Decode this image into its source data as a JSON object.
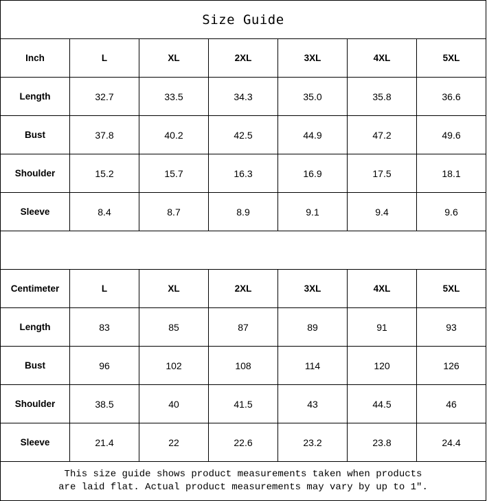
{
  "title": "Size Guide",
  "sizes": [
    "L",
    "XL",
    "2XL",
    "3XL",
    "4XL",
    "5XL"
  ],
  "tables": [
    {
      "unit": "Inch",
      "rows": [
        {
          "label": "Length",
          "values": [
            "32.7",
            "33.5",
            "34.3",
            "35.0",
            "35.8",
            "36.6"
          ]
        },
        {
          "label": "Bust",
          "values": [
            "37.8",
            "40.2",
            "42.5",
            "44.9",
            "47.2",
            "49.6"
          ]
        },
        {
          "label": "Shoulder",
          "values": [
            "15.2",
            "15.7",
            "16.3",
            "16.9",
            "17.5",
            "18.1"
          ]
        },
        {
          "label": "Sleeve",
          "values": [
            "8.4",
            "8.7",
            "8.9",
            "9.1",
            "9.4",
            "9.6"
          ]
        }
      ]
    },
    {
      "unit": "Centimeter",
      "rows": [
        {
          "label": "Length",
          "values": [
            "83",
            "85",
            "87",
            "89",
            "91",
            "93"
          ]
        },
        {
          "label": "Bust",
          "values": [
            "96",
            "102",
            "108",
            "114",
            "120",
            "126"
          ]
        },
        {
          "label": "Shoulder",
          "values": [
            "38.5",
            "40",
            "41.5",
            "43",
            "44.5",
            "46"
          ]
        },
        {
          "label": "Sleeve",
          "values": [
            "21.4",
            "22",
            "22.6",
            "23.2",
            "23.8",
            "24.4"
          ]
        }
      ]
    }
  ],
  "note": {
    "line1": "This size guide shows product measurements taken when products",
    "line2": "are laid flat. Actual product measurements may vary by up to 1″."
  }
}
